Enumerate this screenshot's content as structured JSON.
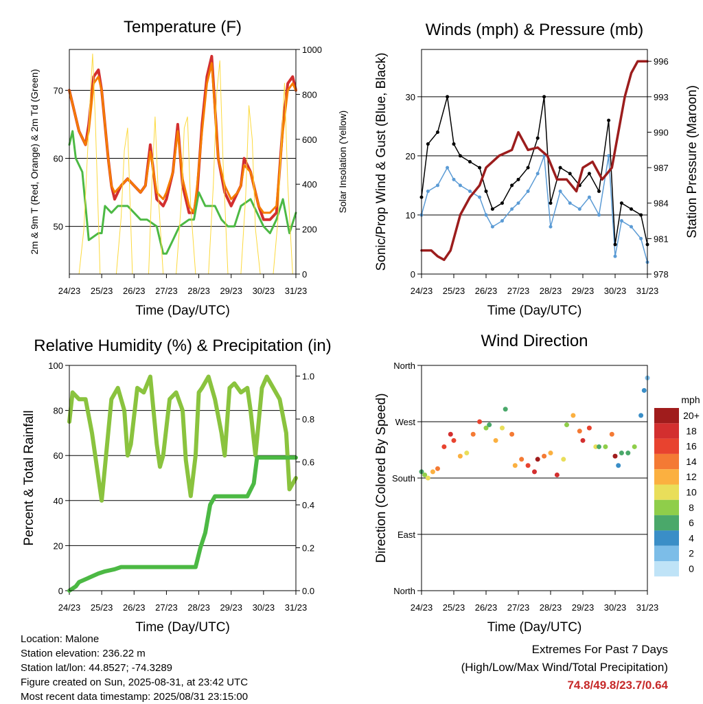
{
  "x_ticks": [
    "24/23",
    "25/23",
    "26/23",
    "27/23",
    "28/23",
    "29/23",
    "30/23",
    "31/23"
  ],
  "charts": [
    {
      "type": "line",
      "title": "Temperature (F)",
      "xlabel": "Time (Day/UTC)",
      "ylabel_left": "2m & 9m T (Red, Orange) & 2m Td (Green)",
      "ylabel_right": "Solar Insolation (Yellow)",
      "ylim_left": [
        43,
        76
      ],
      "ylim_right": [
        0,
        1000
      ],
      "yticks_left": [
        50,
        60,
        70
      ],
      "yticks_right": [
        0,
        200,
        400,
        600,
        800,
        1000
      ],
      "grid": "horizontal",
      "series": [
        {
          "name": "2m T",
          "axis": "left",
          "color": "#d32f2f",
          "x": [
            0,
            0.1,
            0.3,
            0.5,
            0.6,
            0.75,
            0.9,
            1.0,
            1.2,
            1.3,
            1.4,
            1.6,
            1.8,
            2.0,
            2.2,
            2.35,
            2.5,
            2.7,
            2.9,
            3.0,
            3.2,
            3.35,
            3.5,
            3.7,
            3.85,
            3.95,
            4.1,
            4.25,
            4.4,
            4.6,
            4.8,
            5.0,
            5.2,
            5.3,
            5.4,
            5.6,
            5.85,
            6.0,
            6.2,
            6.4,
            6.6,
            6.75,
            6.9,
            7.0
          ],
          "y": [
            70,
            68,
            64,
            62,
            65,
            72,
            73,
            70,
            60,
            56,
            54,
            56,
            57,
            56,
            55,
            56,
            62,
            54,
            53,
            54,
            58,
            65,
            56,
            52,
            52,
            55,
            65,
            72,
            75,
            60,
            55,
            53,
            55,
            56,
            60,
            58,
            53,
            51,
            51,
            52,
            65,
            71,
            72,
            70
          ]
        },
        {
          "name": "9m T",
          "axis": "left",
          "color": "#f57c00",
          "x": [
            0,
            0.1,
            0.3,
            0.5,
            0.6,
            0.75,
            0.9,
            1.0,
            1.2,
            1.3,
            1.4,
            1.6,
            1.8,
            2.0,
            2.2,
            2.35,
            2.5,
            2.7,
            2.9,
            3.0,
            3.2,
            3.35,
            3.5,
            3.7,
            3.85,
            3.95,
            4.1,
            4.25,
            4.4,
            4.6,
            4.8,
            5.0,
            5.2,
            5.3,
            5.4,
            5.6,
            5.85,
            6.0,
            6.2,
            6.4,
            6.6,
            6.75,
            6.9,
            7.0
          ],
          "y": [
            70,
            68,
            64,
            62,
            64,
            71,
            72,
            70,
            60,
            56,
            55,
            56,
            57,
            56,
            55,
            56,
            61,
            55,
            54,
            55,
            58,
            64,
            57,
            53,
            52,
            56,
            64,
            71,
            74,
            60,
            56,
            54,
            55,
            56,
            59,
            58,
            53,
            52,
            52,
            53,
            64,
            70,
            71,
            70
          ]
        },
        {
          "name": "2m Td",
          "axis": "left",
          "color": "#4cb944",
          "x": [
            0,
            0.1,
            0.2,
            0.4,
            0.6,
            0.9,
            1.0,
            1.1,
            1.3,
            1.5,
            1.8,
            2.0,
            2.2,
            2.4,
            2.7,
            2.9,
            3.0,
            3.2,
            3.4,
            3.7,
            3.85,
            4.0,
            4.2,
            4.5,
            4.7,
            4.9,
            5.1,
            5.3,
            5.6,
            5.8,
            6.0,
            6.2,
            6.4,
            6.6,
            6.8,
            7.0
          ],
          "y": [
            62,
            64,
            60,
            58,
            48,
            49,
            49,
            53,
            52,
            53,
            53,
            52,
            51,
            51,
            50,
            46,
            46,
            48,
            50,
            51,
            51,
            55,
            53,
            53,
            51,
            50,
            50,
            53,
            54,
            52,
            50,
            49,
            51,
            54,
            49,
            52
          ]
        },
        {
          "name": "Solar",
          "axis": "right",
          "color": "#fcd93c",
          "x": [
            0,
            0.15,
            0.3,
            0.45,
            0.55,
            0.65,
            0.72,
            0.8,
            0.95,
            1.15,
            1.3,
            1.45,
            1.6,
            1.7,
            1.8,
            1.95,
            2.15,
            2.3,
            2.45,
            2.55,
            2.65,
            2.75,
            2.9,
            3.15,
            3.3,
            3.45,
            3.55,
            3.65,
            3.75,
            3.9,
            4.15,
            4.3,
            4.45,
            4.55,
            4.65,
            4.75,
            4.9,
            5.15,
            5.3,
            5.45,
            5.55,
            5.65,
            5.75,
            5.9,
            6.15,
            6.3,
            6.45,
            6.55,
            6.65,
            6.75,
            6.9,
            7.0
          ],
          "y": [
            0,
            0,
            0,
            200,
            500,
            800,
            980,
            700,
            0,
            0,
            0,
            0,
            250,
            550,
            650,
            0,
            0,
            0,
            0,
            400,
            700,
            350,
            0,
            0,
            0,
            300,
            650,
            700,
            300,
            0,
            0,
            0,
            400,
            800,
            950,
            500,
            0,
            0,
            0,
            350,
            750,
            600,
            200,
            0,
            0,
            0,
            250,
            600,
            850,
            400,
            0,
            0
          ]
        }
      ]
    },
    {
      "type": "scatter",
      "title": "Winds (mph) & Pressure (mb)",
      "xlabel": "Time (Day/UTC)",
      "ylabel_left": "Sonic/Prop Wind & Gust (Blue, Black)",
      "ylabel_right": "Station Pressure (Maroon)",
      "ylim_left": [
        0,
        38
      ],
      "ylim_right": [
        978,
        997
      ],
      "yticks_left": [
        0,
        10,
        20,
        30
      ],
      "yticks_right": [
        978,
        981,
        984,
        987,
        990,
        993,
        996
      ],
      "grid": "horizontal",
      "series": [
        {
          "name": "Wind",
          "axis": "left",
          "color": "#5b9bd5",
          "x": [
            0,
            0.2,
            0.5,
            0.8,
            1.0,
            1.2,
            1.5,
            1.8,
            2.0,
            2.2,
            2.5,
            2.8,
            3.0,
            3.3,
            3.6,
            3.8,
            4.0,
            4.3,
            4.6,
            4.9,
            5.2,
            5.5,
            5.8,
            6.0,
            6.2,
            6.5,
            6.8,
            7.0
          ],
          "y": [
            10,
            14,
            15,
            18,
            16,
            15,
            14,
            13,
            10,
            8,
            9,
            11,
            12,
            14,
            17,
            20,
            8,
            14,
            12,
            11,
            13,
            10,
            20,
            3,
            9,
            8,
            6,
            2
          ]
        },
        {
          "name": "Gust",
          "axis": "left",
          "color": "#000000",
          "x": [
            0,
            0.2,
            0.5,
            0.8,
            1.0,
            1.2,
            1.5,
            1.8,
            2.0,
            2.2,
            2.5,
            2.8,
            3.0,
            3.3,
            3.6,
            3.8,
            4.0,
            4.3,
            4.6,
            4.9,
            5.2,
            5.5,
            5.8,
            6.0,
            6.2,
            6.5,
            6.8,
            7.0
          ],
          "y": [
            13,
            22,
            24,
            30,
            22,
            20,
            19,
            18,
            14,
            11,
            12,
            15,
            16,
            18,
            23,
            30,
            12,
            18,
            17,
            15,
            17,
            14,
            26,
            5,
            12,
            11,
            10,
            5
          ]
        },
        {
          "name": "Pressure",
          "axis": "right",
          "color": "#9c1d1d",
          "x": [
            0,
            0.3,
            0.5,
            0.7,
            0.9,
            1.2,
            1.5,
            1.8,
            2.0,
            2.4,
            2.8,
            3.0,
            3.3,
            3.6,
            3.9,
            4.2,
            4.5,
            4.8,
            5.0,
            5.3,
            5.6,
            5.9,
            6.1,
            6.3,
            6.5,
            6.7,
            6.9,
            7.0
          ],
          "y": [
            980,
            980,
            979.5,
            979.2,
            980,
            983,
            984.5,
            985.5,
            987,
            988,
            988.5,
            990,
            988.5,
            988.7,
            988,
            986,
            986,
            985,
            987,
            987.5,
            986,
            987,
            990,
            993,
            995,
            996,
            996,
            996
          ]
        }
      ]
    },
    {
      "type": "line",
      "title": "Relative Humidity (%) & Precipitation (in)",
      "xlabel": "Time (Day/UTC)",
      "ylabel_left": "Percent & Total Rainfall",
      "ylim_left": [
        0,
        100
      ],
      "ylim_right": [
        0,
        1.05
      ],
      "yticks_left": [
        0,
        20,
        40,
        60,
        80,
        100
      ],
      "yticks_right": [
        0.0,
        0.2,
        0.4,
        0.6,
        0.8,
        1.0
      ],
      "grid": "horizontal",
      "series": [
        {
          "name": "RH",
          "axis": "left",
          "color": "#8ac33e",
          "x": [
            0,
            0.1,
            0.3,
            0.5,
            0.7,
            0.9,
            1.0,
            1.1,
            1.3,
            1.5,
            1.7,
            1.8,
            1.9,
            2.1,
            2.3,
            2.5,
            2.6,
            2.7,
            2.8,
            2.9,
            3.1,
            3.3,
            3.5,
            3.6,
            3.75,
            3.9,
            4.0,
            4.1,
            4.3,
            4.5,
            4.7,
            4.8,
            4.95,
            5.1,
            5.3,
            5.5,
            5.6,
            5.75,
            5.95,
            6.1,
            6.3,
            6.5,
            6.7,
            6.8,
            7.0
          ],
          "y": [
            75,
            88,
            85,
            85,
            70,
            50,
            40,
            55,
            85,
            90,
            80,
            60,
            65,
            90,
            88,
            95,
            80,
            65,
            55,
            60,
            85,
            88,
            80,
            58,
            42,
            60,
            88,
            90,
            95,
            85,
            70,
            60,
            90,
            92,
            88,
            90,
            80,
            60,
            90,
            95,
            90,
            85,
            70,
            45,
            50
          ]
        },
        {
          "name": "Precip",
          "axis": "right",
          "color": "#4cb944",
          "x": [
            0,
            0.2,
            0.3,
            0.6,
            0.9,
            1.1,
            1.4,
            1.6,
            2.0,
            3.0,
            3.9,
            4.05,
            4.2,
            4.35,
            4.5,
            4.8,
            5.2,
            5.5,
            5.7,
            5.8,
            6.0,
            6.3,
            6.6,
            7.0
          ],
          "y": [
            0.0,
            0.02,
            0.04,
            0.06,
            0.08,
            0.09,
            0.1,
            0.11,
            0.11,
            0.11,
            0.11,
            0.2,
            0.27,
            0.4,
            0.44,
            0.44,
            0.44,
            0.44,
            0.5,
            0.62,
            0.62,
            0.62,
            0.62,
            0.62
          ]
        }
      ]
    },
    {
      "type": "scatter",
      "title": "Wind Direction",
      "xlabel": "Time (Day/UTC)",
      "ylabel_left": "Direction (Colored By Speed)",
      "yticks_left": [
        "North",
        "East",
        "South",
        "West",
        "North"
      ],
      "ylim_left": [
        0,
        360
      ],
      "grid": "horizontal",
      "series": [
        {
          "name": "Direction",
          "axis": "left",
          "x": [
            0,
            0.1,
            0.2,
            0.35,
            0.5,
            0.7,
            0.9,
            1.0,
            1.2,
            1.4,
            1.6,
            1.8,
            2.0,
            2.1,
            2.3,
            2.5,
            2.6,
            2.8,
            2.9,
            3.1,
            3.3,
            3.5,
            3.6,
            3.8,
            4.0,
            4.2,
            4.4,
            4.5,
            4.7,
            4.9,
            5.0,
            5.2,
            5.4,
            5.5,
            5.7,
            5.9,
            6.0,
            6.1,
            6.2,
            6.4,
            6.6,
            6.8,
            6.9,
            7.0
          ],
          "y": [
            190,
            185,
            180,
            190,
            195,
            230,
            250,
            240,
            215,
            220,
            250,
            270,
            260,
            265,
            240,
            260,
            290,
            250,
            200,
            210,
            200,
            190,
            210,
            215,
            220,
            185,
            210,
            265,
            280,
            255,
            240,
            260,
            230,
            230,
            230,
            250,
            215,
            200,
            220,
            220,
            230,
            280,
            320,
            340
          ],
          "speed": [
            6,
            8,
            10,
            12,
            14,
            16,
            18,
            16,
            12,
            10,
            14,
            16,
            8,
            6,
            12,
            10,
            6,
            14,
            12,
            14,
            16,
            18,
            20,
            14,
            12,
            18,
            10,
            8,
            12,
            14,
            18,
            16,
            10,
            6,
            8,
            14,
            20,
            4,
            6,
            6,
            8,
            4,
            4,
            2
          ]
        }
      ]
    }
  ],
  "speed_legend": {
    "title": "mph",
    "labels": [
      "20+",
      "18",
      "16",
      "14",
      "12",
      "10",
      "8",
      "6",
      "4",
      "2",
      "0"
    ],
    "colors": [
      "#a01c1c",
      "#d32f2f",
      "#e8432f",
      "#f47a34",
      "#fbb040",
      "#e9de5a",
      "#8fce4a",
      "#4aa86a",
      "#3a8ec7",
      "#7cbde8",
      "#bfe3f7"
    ]
  },
  "info": [
    "Location: Malone",
    "Station elevation: 236.22 m",
    "Station lat/lon: 44.8527; -74.3289",
    "Figure created on Sun, 2025-08-31, at 23:42 UTC",
    "Most recent data timestamp: 2025/08/31 23:15:00"
  ],
  "extremes": {
    "line1": "Extremes For Past 7 Days",
    "line2": "(High/Low/Max Wind/Total Precipitation)",
    "values": "74.8/49.8/23.7/0.64"
  }
}
